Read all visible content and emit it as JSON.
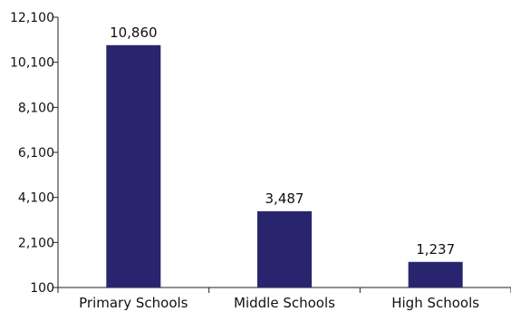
{
  "chart_data": {
    "type": "bar",
    "title": "",
    "xlabel": "",
    "ylabel": "",
    "categories": [
      "Primary Schools",
      "Middle Schools",
      "High Schools"
    ],
    "values": [
      10860,
      3487,
      1237
    ],
    "data_labels": [
      "10,860",
      "3,487",
      "1,237"
    ],
    "yticks": [
      100,
      2100,
      4100,
      6100,
      8100,
      10100,
      12100
    ],
    "ytick_labels": [
      "100",
      "2,100",
      "4,100",
      "6,100",
      "8,100",
      "10,100",
      "12,100"
    ],
    "ylim": [
      100,
      12100
    ],
    "grid": false,
    "legend": "none",
    "bar_color": "#28256e"
  }
}
